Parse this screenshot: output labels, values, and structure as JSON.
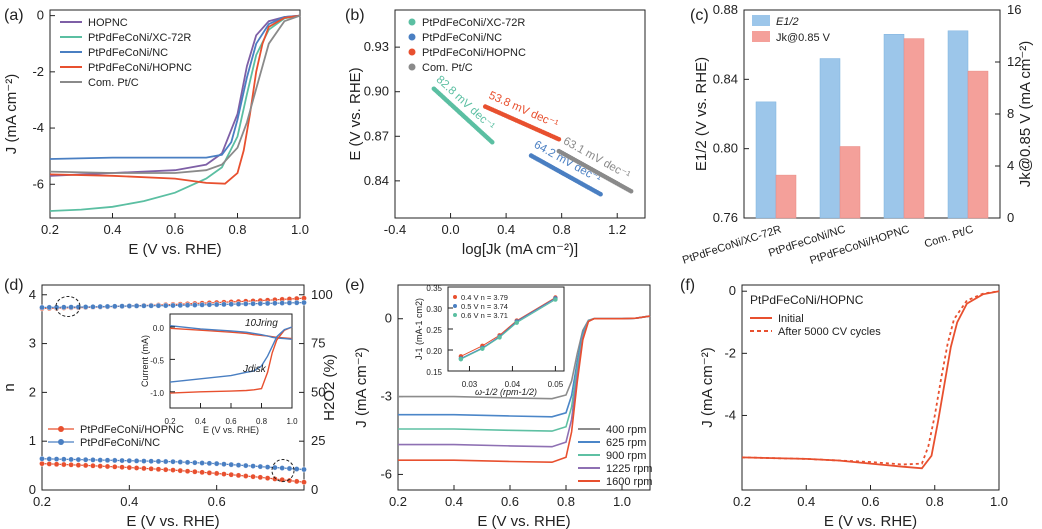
{
  "colors": {
    "hopnc": "#7e5fa6",
    "xc": "#5bbfa2",
    "nc": "#4a7fc2",
    "hop": "#e8502f",
    "ptc": "#8a8a8a",
    "bar_e": "#9cc6ea",
    "bar_j": "#f4a09a",
    "r400": "#8c8c8c",
    "r625": "#4b86c8",
    "r900": "#5ec0a3",
    "r1225": "#8e70b3",
    "r1600": "#e8502f"
  },
  "chart_data": [
    {
      "panel": "(a)",
      "type": "line",
      "xlabel": "E (V vs. RHE)",
      "ylabel": "J (mA cm⁻²)",
      "xlim": [
        0.2,
        1.0
      ],
      "ylim": [
        -7.2,
        0.2
      ],
      "xticks": [
        "0.2",
        "0.4",
        "0.6",
        "0.8",
        "1.0"
      ],
      "yticks": [
        "0",
        "-2",
        "-4",
        "-6"
      ],
      "legend": [
        "HOPNC",
        "PtPdFeCoNi/XC-72R",
        "PtPdFeCoNi/NC",
        "PtPdFeCoNi/HOPNC",
        "Com. Pt/C"
      ],
      "series": [
        {
          "name": "HOPNC",
          "key": "hopnc",
          "x": [
            0.2,
            0.4,
            0.6,
            0.7,
            0.75,
            0.8,
            0.83,
            0.86,
            0.9,
            0.95,
            1.0
          ],
          "y": [
            -5.7,
            -5.6,
            -5.5,
            -5.3,
            -4.9,
            -3.5,
            -1.8,
            -0.7,
            -0.2,
            -0.05,
            0
          ]
        },
        {
          "name": "PtPdFeCoNi/XC-72R",
          "key": "xc",
          "x": [
            0.2,
            0.3,
            0.4,
            0.5,
            0.6,
            0.7,
            0.75,
            0.8,
            0.83,
            0.86,
            0.9,
            0.95,
            1.0
          ],
          "y": [
            -6.95,
            -6.9,
            -6.8,
            -6.6,
            -6.3,
            -5.8,
            -5.4,
            -4.3,
            -2.8,
            -1.4,
            -0.5,
            -0.1,
            0
          ]
        },
        {
          "name": "PtPdFeCoNi/NC",
          "key": "nc",
          "x": [
            0.2,
            0.4,
            0.6,
            0.7,
            0.75,
            0.78,
            0.8,
            0.83,
            0.86,
            0.9,
            0.95,
            1.0
          ],
          "y": [
            -5.1,
            -5.05,
            -5.05,
            -5.05,
            -4.95,
            -4.5,
            -3.7,
            -2.2,
            -1.0,
            -0.3,
            -0.05,
            0
          ]
        },
        {
          "name": "PtPdFeCoNi/HOPNC",
          "key": "hop",
          "x": [
            0.2,
            0.4,
            0.6,
            0.7,
            0.76,
            0.8,
            0.82,
            0.84,
            0.86,
            0.88,
            0.9,
            0.95,
            1.0
          ],
          "y": [
            -5.65,
            -5.7,
            -5.8,
            -5.95,
            -5.98,
            -5.6,
            -4.8,
            -3.5,
            -2.0,
            -1.0,
            -0.4,
            -0.08,
            0
          ]
        },
        {
          "name": "Com. Pt/C",
          "key": "ptc",
          "x": [
            0.2,
            0.4,
            0.6,
            0.7,
            0.75,
            0.8,
            0.83,
            0.86,
            0.88,
            0.9,
            0.95,
            1.0
          ],
          "y": [
            -5.55,
            -5.6,
            -5.6,
            -5.5,
            -5.3,
            -4.7,
            -3.8,
            -2.6,
            -1.8,
            -1.0,
            -0.2,
            0
          ]
        }
      ]
    },
    {
      "panel": "(b)",
      "type": "scatter",
      "xlabel": "log[Jk (mA cm⁻²)]",
      "ylabel": "E (V vs. RHE)",
      "xlim": [
        -0.4,
        1.4
      ],
      "ylim": [
        0.815,
        0.955
      ],
      "xticks": [
        "-0.4",
        "0.0",
        "0.4",
        "0.8",
        "1.2"
      ],
      "yticks": [
        "0.84",
        "0.87",
        "0.90",
        "0.93"
      ],
      "series": [
        {
          "name": "PtPdFeCoNi/XC-72R",
          "key": "xc",
          "x0": -0.12,
          "x1": 0.3,
          "y0": 0.902,
          "y1": 0.866,
          "label": "82.8 mV dec⁻¹"
        },
        {
          "name": "PtPdFeCoNi/NC",
          "key": "nc",
          "x0": 0.58,
          "x1": 1.08,
          "y0": 0.857,
          "y1": 0.831,
          "label": "64.2 mV dec⁻¹"
        },
        {
          "name": "PtPdFeCoNi/HOPNC",
          "key": "hop",
          "x0": 0.25,
          "x1": 0.78,
          "y0": 0.89,
          "y1": 0.868,
          "label": "53.8 mV dec⁻¹"
        },
        {
          "name": "Com. Pt/C",
          "key": "ptc",
          "x0": 0.78,
          "x1": 1.3,
          "y0": 0.86,
          "y1": 0.833,
          "label": "63.1 mV dec⁻¹"
        }
      ]
    },
    {
      "panel": "(c)",
      "type": "bar",
      "ylabel": "E1/2 (V vs. RHE)",
      "y2label": "Jk@0.85 V (mA cm⁻²)",
      "ylim": [
        0.76,
        0.88
      ],
      "y2lim": [
        0,
        16
      ],
      "yticks": [
        "0.76",
        "0.80",
        "0.84",
        "0.88"
      ],
      "y2ticks": [
        "0",
        "4",
        "8",
        "12",
        "16"
      ],
      "categories": [
        "PtPdFeCoNi/XC-72R",
        "PtPdFeCoNi/NC",
        "PtPdFeCoNi/HOPNC",
        "Com. Pt/C"
      ],
      "series": [
        {
          "name": "E1/2",
          "values": [
            0.827,
            0.852,
            0.866,
            0.868
          ]
        },
        {
          "name": "Jk@0.85 V",
          "values": [
            3.3,
            5.5,
            13.8,
            11.3
          ]
        }
      ],
      "legend": [
        "E1/2",
        "Jk@0.85 V"
      ]
    },
    {
      "panel": "(d)",
      "type": "line",
      "xlabel": "E (V vs. RHE)",
      "ylabel": "n",
      "y2label": "H2O2 (%)",
      "xlim": [
        0.2,
        0.8
      ],
      "ylim": [
        0,
        4.2
      ],
      "y2lim": [
        0,
        105
      ],
      "xticks": [
        "0.2",
        "0.4",
        "0.6"
      ],
      "yticks": [
        "0",
        "1",
        "2",
        "3",
        "4"
      ],
      "y2ticks": [
        "0",
        "25",
        "50",
        "75",
        "100"
      ],
      "legend": [
        "PtPdFeCoNi/HOPNC",
        "PtPdFeCoNi/NC"
      ],
      "series": [
        {
          "name": "n HOPNC",
          "key": "hop",
          "x": [
            0.2,
            0.3,
            0.4,
            0.5,
            0.6,
            0.7,
            0.8
          ],
          "y": [
            3.72,
            3.74,
            3.77,
            3.8,
            3.84,
            3.88,
            3.93
          ]
        },
        {
          "name": "n NC",
          "key": "nc",
          "x": [
            0.2,
            0.3,
            0.4,
            0.5,
            0.6,
            0.7,
            0.8
          ],
          "y": [
            3.74,
            3.75,
            3.77,
            3.78,
            3.8,
            3.82,
            3.84
          ]
        },
        {
          "name": "H2O2 HOPNC",
          "key": "hop",
          "x": [
            0.2,
            0.3,
            0.4,
            0.5,
            0.6,
            0.7,
            0.8
          ],
          "y": [
            13.5,
            12.6,
            11.5,
            10.2,
            8.5,
            6.5,
            4.0
          ]
        },
        {
          "name": "H2O2 NC",
          "key": "nc",
          "x": [
            0.2,
            0.3,
            0.4,
            0.5,
            0.6,
            0.7,
            0.8
          ],
          "y": [
            16,
            15.5,
            15,
            14.5,
            13.5,
            12,
            10.5
          ]
        }
      ],
      "inset": {
        "xlabel": "E (V vs. RHE)",
        "ylabel": "Current (mA)",
        "xticks": [
          "0.2",
          "0.4",
          "0.6",
          "0.8",
          "1.0"
        ],
        "yticks": [
          "0.0",
          "-0.5",
          "-1.0"
        ],
        "label_ring": "10Jring",
        "label_disk": "Jdisk"
      }
    },
    {
      "panel": "(e)",
      "type": "line",
      "xlabel": "E (V vs. RHE)",
      "ylabel": "J (mA cm⁻²)",
      "xlim": [
        0.2,
        1.1
      ],
      "ylim": [
        -6.6,
        1.3
      ],
      "xticks": [
        "0.2",
        "0.4",
        "0.6",
        "0.8",
        "1.0"
      ],
      "yticks": [
        "0",
        "-3",
        "-6"
      ],
      "legend": [
        "400 rpm",
        "625 rpm",
        "900 rpm",
        "1225 rpm",
        "1600 rpm"
      ],
      "series": [
        {
          "name": "400 rpm",
          "key": "r400",
          "plateau": -3.0
        },
        {
          "name": "625 rpm",
          "key": "r625",
          "plateau": -3.7
        },
        {
          "name": "900 rpm",
          "key": "r900",
          "plateau": -4.25
        },
        {
          "name": "1225 rpm",
          "key": "r1225",
          "plateau": -4.85
        },
        {
          "name": "1600 rpm",
          "key": "r1600",
          "plateau": -5.45
        }
      ],
      "inset": {
        "xlabel": "ω-1/2 (rpm-1/2)",
        "ylabel": "J-1 (mA-1 cm2)",
        "xticks": [
          "0.03",
          "0.04",
          "0.05"
        ],
        "yticks": [
          "0.15",
          "0.20",
          "0.25",
          "0.30",
          "0.35"
        ],
        "legend": [
          "0.4 V  n = 3.79",
          "0.5 V  n = 3.74",
          "0.6 V  n = 3.71"
        ]
      }
    },
    {
      "panel": "(f)",
      "type": "line",
      "xlabel": "E (V vs. RHE)",
      "ylabel": "J (mA cm⁻²)",
      "xlim": [
        0.2,
        1.0
      ],
      "ylim": [
        -6.4,
        0.2
      ],
      "xticks": [
        "0.2",
        "0.4",
        "0.6",
        "0.8",
        "1.0"
      ],
      "yticks": [
        "0",
        "-2",
        "-4"
      ],
      "title": "PtPdFeCoNi/HOPNC",
      "legend": [
        "Initial",
        "After 5000 CV cycles"
      ],
      "series": [
        {
          "name": "Initial",
          "key": "hop",
          "dash": false,
          "x": [
            0.2,
            0.4,
            0.5,
            0.6,
            0.7,
            0.76,
            0.79,
            0.81,
            0.83,
            0.85,
            0.87,
            0.9,
            0.95,
            1.0
          ],
          "y": [
            -5.35,
            -5.4,
            -5.45,
            -5.55,
            -5.65,
            -5.7,
            -5.3,
            -4.2,
            -3.0,
            -1.8,
            -1.0,
            -0.4,
            -0.1,
            0
          ]
        },
        {
          "name": "After 5000 CV cycles",
          "key": "hop",
          "dash": true,
          "x": [
            0.2,
            0.4,
            0.5,
            0.6,
            0.7,
            0.76,
            0.78,
            0.8,
            0.82,
            0.84,
            0.86,
            0.9,
            0.95,
            1.0
          ],
          "y": [
            -5.35,
            -5.4,
            -5.45,
            -5.5,
            -5.58,
            -5.55,
            -5.0,
            -4.0,
            -2.8,
            -1.7,
            -0.9,
            -0.3,
            -0.08,
            0
          ]
        }
      ]
    }
  ]
}
